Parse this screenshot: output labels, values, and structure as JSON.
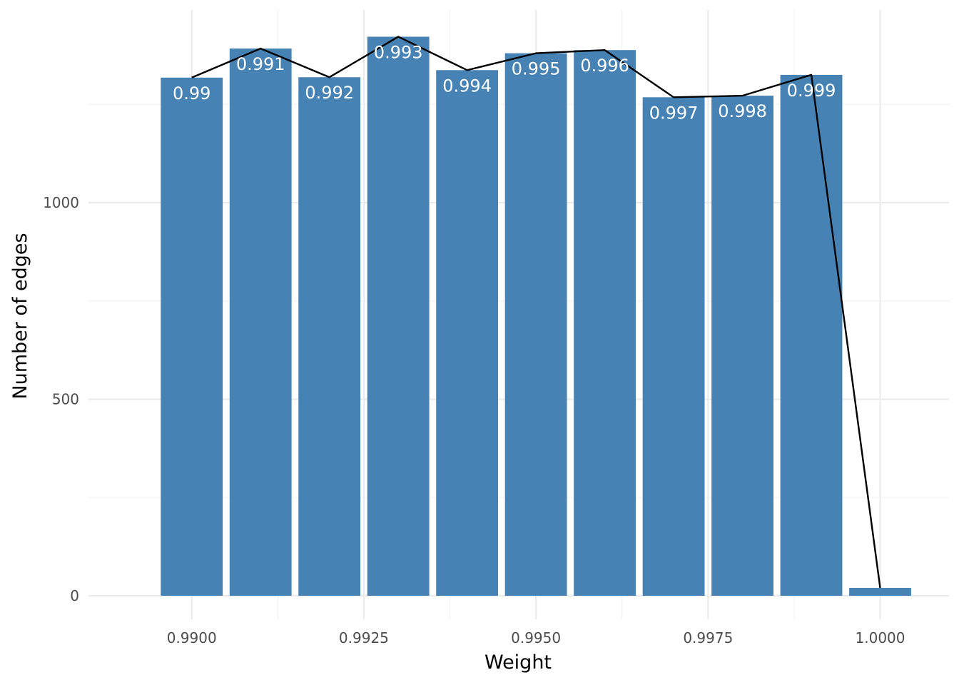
{
  "chart_data": {
    "type": "bar",
    "title": "",
    "xlabel": "Weight",
    "ylabel": "Number of edges",
    "x": [
      0.99,
      0.991,
      0.992,
      0.993,
      0.994,
      0.995,
      0.996,
      0.997,
      0.998,
      0.999,
      1.0
    ],
    "values": [
      1318,
      1392,
      1319,
      1422,
      1337,
      1380,
      1388,
      1268,
      1272,
      1325,
      20
    ],
    "bar_labels": [
      "0.99",
      "0.991",
      "0.992",
      "0.993",
      "0.994",
      "0.995",
      "0.996",
      "0.997",
      "0.998",
      "0.999",
      ""
    ],
    "line_overlay": true,
    "xlim": [
      0.9885,
      1.001
    ],
    "ylim": [
      -60,
      1490
    ],
    "x_ticks": [
      0.99,
      0.9925,
      0.995,
      0.9975,
      1.0
    ],
    "x_tick_labels": [
      "0.9900",
      "0.9925",
      "0.9950",
      "0.9975",
      "1.0000"
    ],
    "y_ticks": [
      0,
      500,
      1000
    ],
    "y_tick_labels": [
      "0",
      "500",
      "1000"
    ],
    "grid": true,
    "legend": "none",
    "colors": {
      "bar": "#4682b4",
      "line": "#000000",
      "grid_major": "#ebebeb",
      "grid_minor": "#f3f3f3",
      "bar_label": "#ffffff"
    }
  }
}
